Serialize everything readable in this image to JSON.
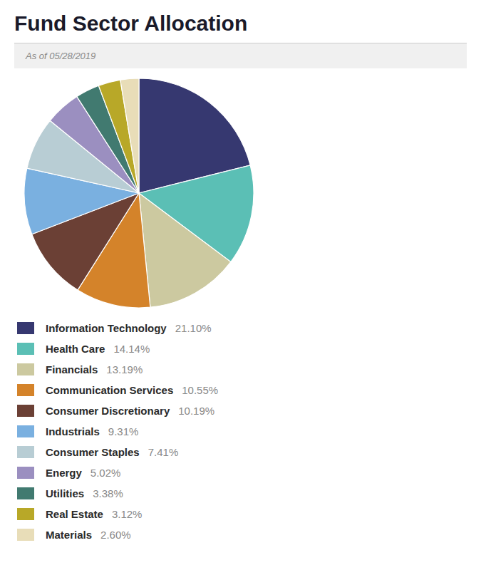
{
  "chart_data": {
    "type": "pie",
    "title": "Fund Sector Allocation",
    "subtitle": "As of 05/28/2019",
    "categories": [
      "Information Technology",
      "Health Care",
      "Financials",
      "Communication Services",
      "Consumer Discretionary",
      "Industrials",
      "Consumer Staples",
      "Energy",
      "Utilities",
      "Real Estate",
      "Materials"
    ],
    "values": [
      21.1,
      14.14,
      13.19,
      10.55,
      10.19,
      9.31,
      7.41,
      5.02,
      3.38,
      3.12,
      2.6
    ],
    "value_labels": [
      "21.10%",
      "14.14%",
      "13.19%",
      "10.55%",
      "10.19%",
      "9.31%",
      "7.41%",
      "5.02%",
      "3.38%",
      "3.12%",
      "2.60%"
    ],
    "colors": [
      "#363870",
      "#5bbfb5",
      "#ccc9a0",
      "#d4832a",
      "#6b4035",
      "#7ab0e0",
      "#b8cdd4",
      "#9b8fc0",
      "#417a70",
      "#b8a828",
      "#e8ddb8"
    ],
    "legend": "bottom"
  }
}
